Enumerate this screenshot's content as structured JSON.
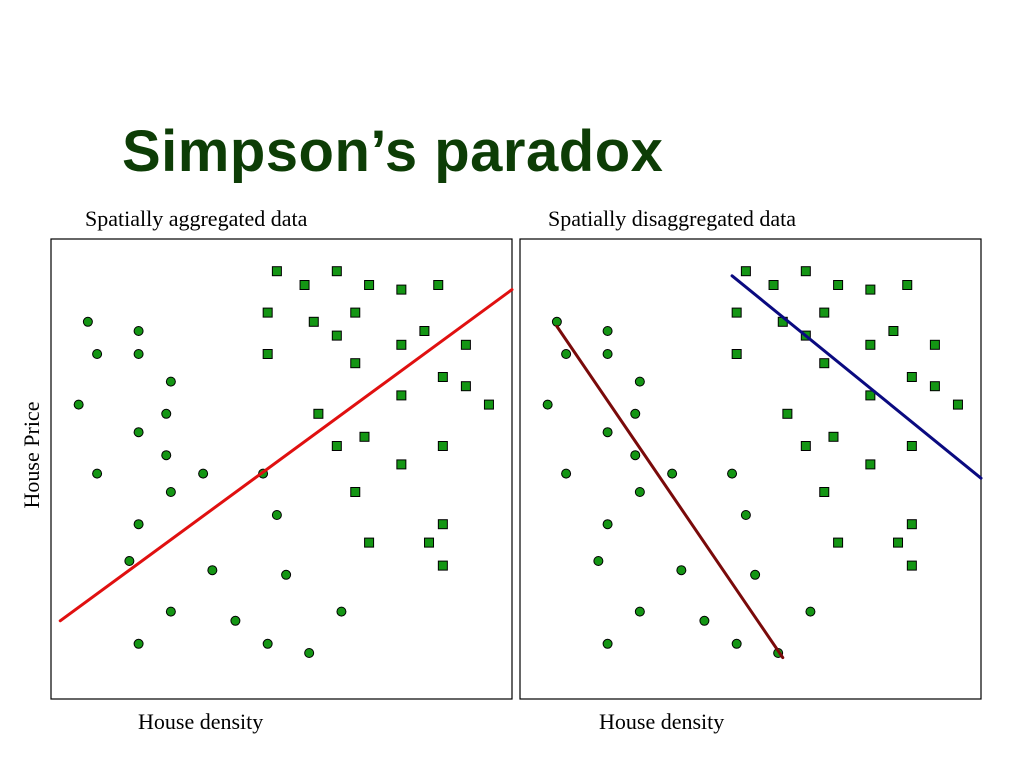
{
  "slide": {
    "title": "Simpson’s paradox",
    "ylabel": "House Price"
  },
  "colors": {
    "title": "#0d3d06",
    "marker_fill": "#149614",
    "aggregate_line": "#e01010",
    "circle_group_line": "#7a0a0a",
    "square_group_line": "#0a0a80"
  },
  "chart_data": [
    {
      "type": "scatter",
      "title": "Spatially aggregated data",
      "xlabel": "House density",
      "ylabel": "House Price",
      "xlim": [
        0,
        100
      ],
      "ylim": [
        0,
        100
      ],
      "grid": false,
      "series": [
        {
          "marker": "circle",
          "points": [
            [
              8,
              82
            ],
            [
              10,
              75
            ],
            [
              19,
              80
            ],
            [
              19,
              75
            ],
            [
              26,
              69
            ],
            [
              6,
              64
            ],
            [
              25,
              62
            ],
            [
              19,
              58
            ],
            [
              25,
              53
            ],
            [
              10,
              49
            ],
            [
              26,
              45
            ],
            [
              33,
              49
            ],
            [
              46,
              49
            ],
            [
              19,
              38
            ],
            [
              17,
              30
            ],
            [
              35,
              28
            ],
            [
              51,
              27
            ],
            [
              26,
              19
            ],
            [
              40,
              17
            ],
            [
              19,
              12
            ],
            [
              47,
              12
            ],
            [
              56,
              10
            ],
            [
              49,
              40
            ],
            [
              63,
              19
            ]
          ]
        },
        {
          "marker": "square",
          "points": [
            [
              49,
              93
            ],
            [
              62,
              93
            ],
            [
              55,
              90
            ],
            [
              69,
              90
            ],
            [
              76,
              89
            ],
            [
              84,
              90
            ],
            [
              47,
              84
            ],
            [
              57,
              82
            ],
            [
              66,
              84
            ],
            [
              62,
              79
            ],
            [
              81,
              80
            ],
            [
              66,
              73
            ],
            [
              76,
              77
            ],
            [
              90,
              77
            ],
            [
              47,
              75
            ],
            [
              85,
              70
            ],
            [
              90,
              68
            ],
            [
              76,
              66
            ],
            [
              95,
              64
            ],
            [
              58,
              62
            ],
            [
              62,
              55
            ],
            [
              68,
              57
            ],
            [
              85,
              55
            ],
            [
              76,
              51
            ],
            [
              66,
              45
            ],
            [
              85,
              38
            ],
            [
              69,
              34
            ],
            [
              82,
              34
            ],
            [
              85,
              29
            ]
          ]
        }
      ],
      "trend_lines": [
        {
          "role": "aggregate",
          "from": [
            2,
            17
          ],
          "to": [
            100,
            89
          ]
        }
      ]
    },
    {
      "type": "scatter",
      "title": "Spatially disaggregated data",
      "xlabel": "House density",
      "ylabel": "House Price",
      "xlim": [
        0,
        100
      ],
      "ylim": [
        0,
        100
      ],
      "grid": false,
      "series": [
        {
          "marker": "circle",
          "points": [
            [
              8,
              82
            ],
            [
              10,
              75
            ],
            [
              19,
              80
            ],
            [
              19,
              75
            ],
            [
              26,
              69
            ],
            [
              6,
              64
            ],
            [
              25,
              62
            ],
            [
              19,
              58
            ],
            [
              25,
              53
            ],
            [
              10,
              49
            ],
            [
              26,
              45
            ],
            [
              33,
              49
            ],
            [
              46,
              49
            ],
            [
              19,
              38
            ],
            [
              17,
              30
            ],
            [
              35,
              28
            ],
            [
              51,
              27
            ],
            [
              26,
              19
            ],
            [
              40,
              17
            ],
            [
              19,
              12
            ],
            [
              47,
              12
            ],
            [
              56,
              10
            ],
            [
              49,
              40
            ],
            [
              63,
              19
            ]
          ]
        },
        {
          "marker": "square",
          "points": [
            [
              49,
              93
            ],
            [
              62,
              93
            ],
            [
              55,
              90
            ],
            [
              69,
              90
            ],
            [
              76,
              89
            ],
            [
              84,
              90
            ],
            [
              47,
              84
            ],
            [
              57,
              82
            ],
            [
              66,
              84
            ],
            [
              62,
              79
            ],
            [
              81,
              80
            ],
            [
              66,
              73
            ],
            [
              76,
              77
            ],
            [
              90,
              77
            ],
            [
              47,
              75
            ],
            [
              85,
              70
            ],
            [
              90,
              68
            ],
            [
              76,
              66
            ],
            [
              95,
              64
            ],
            [
              58,
              62
            ],
            [
              62,
              55
            ],
            [
              68,
              57
            ],
            [
              85,
              55
            ],
            [
              76,
              51
            ],
            [
              66,
              45
            ],
            [
              85,
              38
            ],
            [
              69,
              34
            ],
            [
              82,
              34
            ],
            [
              85,
              29
            ]
          ]
        }
      ],
      "trend_lines": [
        {
          "role": "circle-group",
          "from": [
            8,
            81
          ],
          "to": [
            57,
            9
          ]
        },
        {
          "role": "square-group",
          "from": [
            46,
            92
          ],
          "to": [
            100,
            48
          ]
        }
      ]
    }
  ]
}
